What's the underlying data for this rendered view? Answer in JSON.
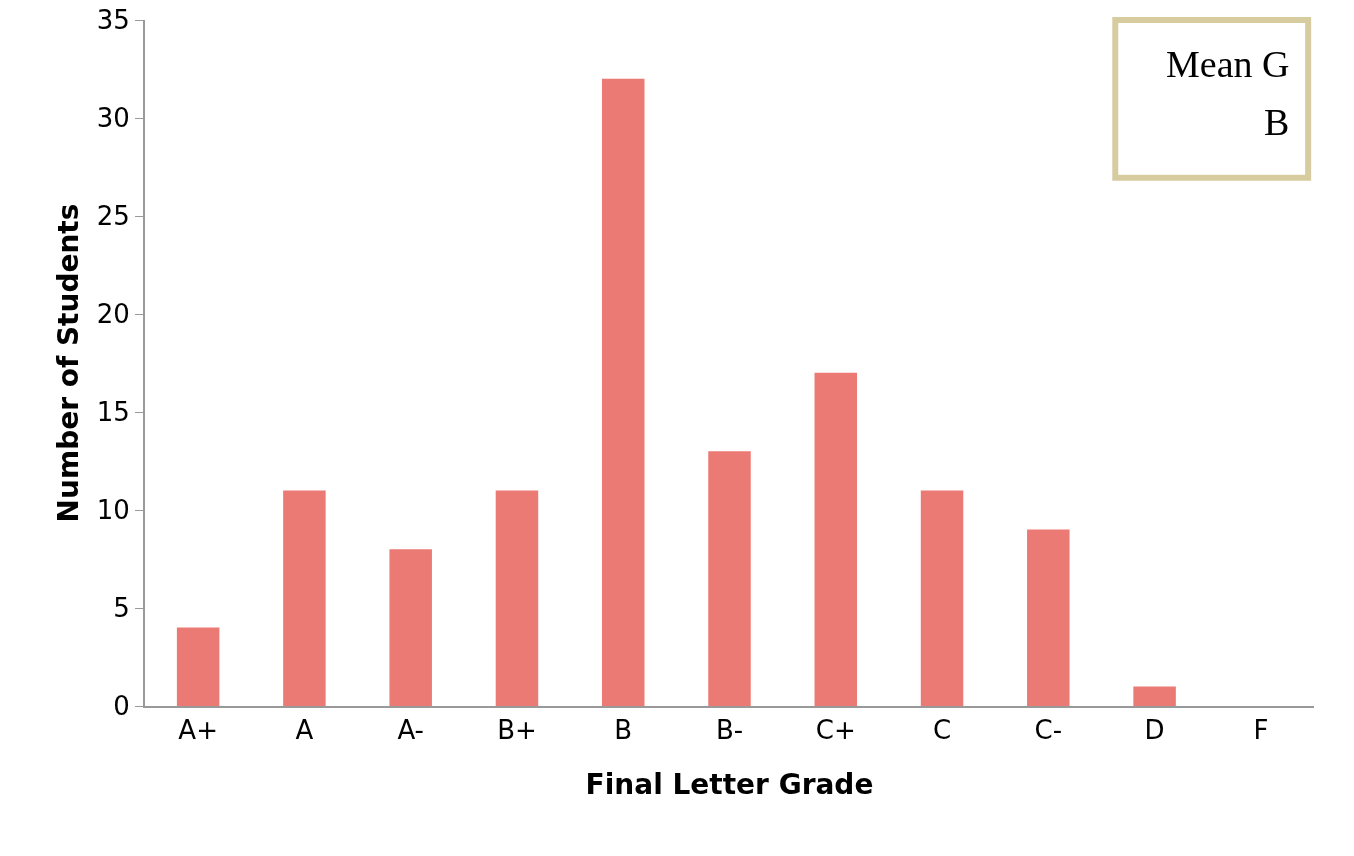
{
  "chart_data": {
    "type": "bar",
    "xlabel": "Final Letter Grade",
    "ylabel": "Number of Students",
    "categories": [
      "A+",
      "A",
      "A-",
      "B+",
      "B",
      "B-",
      "C+",
      "C",
      "C-",
      "D",
      "F"
    ],
    "values": [
      4,
      11,
      8,
      11,
      32,
      13,
      17,
      11,
      9,
      1,
      0
    ],
    "color": "#ec7a74",
    "ylim": [
      0,
      35
    ],
    "yticks": [
      0,
      5,
      10,
      15,
      20,
      25,
      30,
      35
    ],
    "grid": false,
    "annotations": [
      "Mean G",
      "B"
    ]
  }
}
